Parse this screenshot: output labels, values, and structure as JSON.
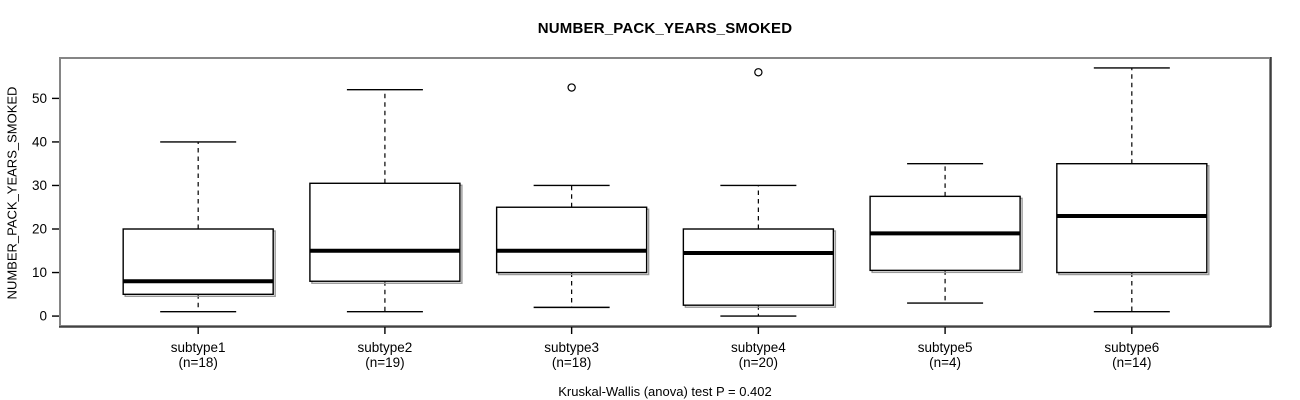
{
  "chart_data": {
    "type": "boxplot",
    "title": "NUMBER_PACK_YEARS_SMOKED",
    "ylabel": "NUMBER_PACK_YEARS_SMOKED",
    "xlabel": "",
    "caption": "Kruskal-Wallis (anova) test P = 0.402",
    "y_ticks": [
      0,
      10,
      20,
      30,
      40,
      50
    ],
    "ylim_data": [
      0,
      57
    ],
    "ylim_axis": [
      -2.28,
      59.28
    ],
    "x_axis_range": [
      0.26,
      6.74
    ],
    "grid": false,
    "legend": null,
    "groups": [
      {
        "label": "subtype1",
        "n_label": "(n=18)",
        "n": 18,
        "whisker_low": 1,
        "q1": 5,
        "median": 8,
        "q3": 20,
        "whisker_high": 40,
        "outliers": []
      },
      {
        "label": "subtype2",
        "n_label": "(n=19)",
        "n": 19,
        "whisker_low": 1,
        "q1": 8,
        "median": 15,
        "q3": 30.5,
        "whisker_high": 52,
        "outliers": []
      },
      {
        "label": "subtype3",
        "n_label": "(n=18)",
        "n": 18,
        "whisker_low": 2,
        "q1": 10,
        "median": 15,
        "q3": 25,
        "whisker_high": 30,
        "outliers": [
          52.5
        ]
      },
      {
        "label": "subtype4",
        "n_label": "(n=20)",
        "n": 20,
        "whisker_low": 0,
        "q1": 2.5,
        "median": 14.5,
        "q3": 20,
        "whisker_high": 30,
        "outliers": [
          56
        ]
      },
      {
        "label": "subtype5",
        "n_label": "(n=4)",
        "n": 4,
        "whisker_low": 3,
        "q1": 10.5,
        "median": 19,
        "q3": 27.5,
        "whisker_high": 35,
        "outliers": []
      },
      {
        "label": "subtype6",
        "n_label": "(n=14)",
        "n": 14,
        "whisker_low": 1,
        "q1": 10,
        "median": 23,
        "q3": 35,
        "whisker_high": 57,
        "outliers": []
      }
    ],
    "colors": {
      "background": "#ffffff",
      "frame": "#858585",
      "frame_dark": "#1a1a1a",
      "axis": "#000000",
      "box_stroke": "#000000",
      "box_fill": "#ffffff",
      "box_shadow": "#9a9a9a",
      "median": "#000000",
      "text": "#000000"
    }
  }
}
